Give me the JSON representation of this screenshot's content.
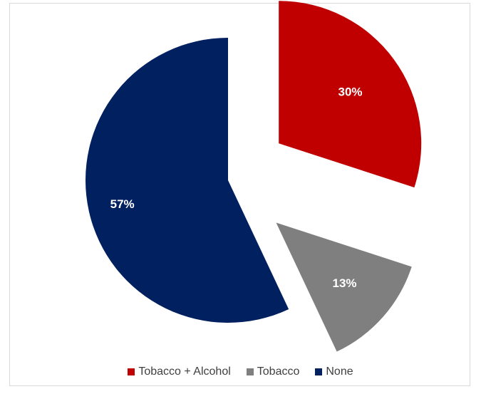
{
  "chart_data": {
    "type": "pie",
    "title": "",
    "slices": [
      {
        "label": "Tobacco + Alcohol",
        "value": 30,
        "value_label": "30%",
        "color": "#c00000"
      },
      {
        "label": "Tobacco",
        "value": 13,
        "value_label": "13%",
        "color": "#7f7f7f"
      },
      {
        "label": "None",
        "value": 57,
        "value_label": "57%",
        "color": "#002060"
      }
    ],
    "exploded": true,
    "start_angle": "12 o'clock, clockwise",
    "legend_position": "bottom"
  }
}
